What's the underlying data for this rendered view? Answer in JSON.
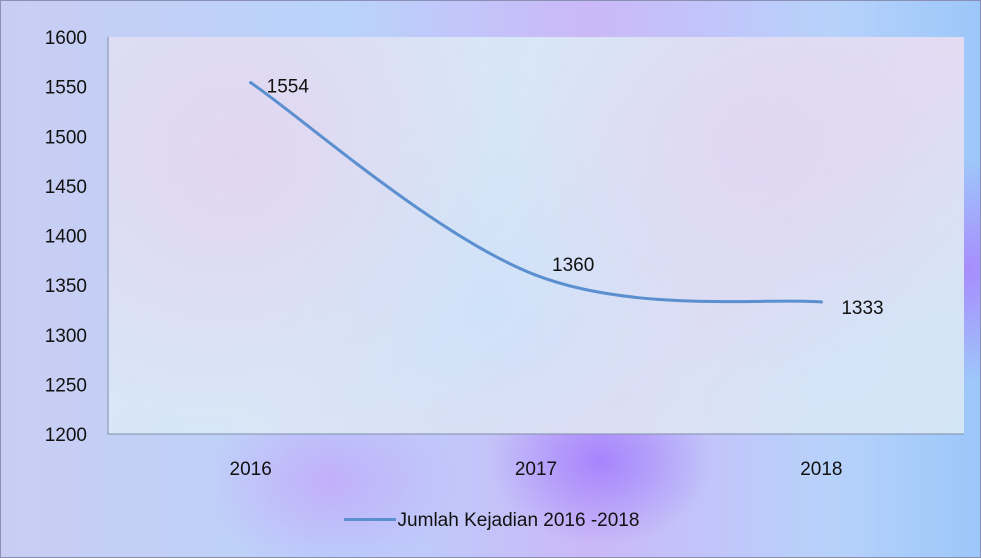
{
  "chart_data": {
    "type": "line",
    "title": "",
    "xlabel": "",
    "ylabel": "",
    "categories": [
      "2016",
      "2017",
      "2018"
    ],
    "series": [
      {
        "name": "Jumlah Kejadian 2016 -2018",
        "values": [
          1554,
          1360,
          1333
        ],
        "color": "#5b8fd0",
        "smooth": true,
        "data_labels": [
          "1554",
          "1360",
          "1333"
        ]
      }
    ],
    "ylim": [
      1200,
      1600
    ],
    "y_ticks": [
      "1200",
      "1250",
      "1300",
      "1350",
      "1400",
      "1450",
      "1500",
      "1550",
      "1600"
    ],
    "grid": false,
    "legend_position": "bottom"
  }
}
